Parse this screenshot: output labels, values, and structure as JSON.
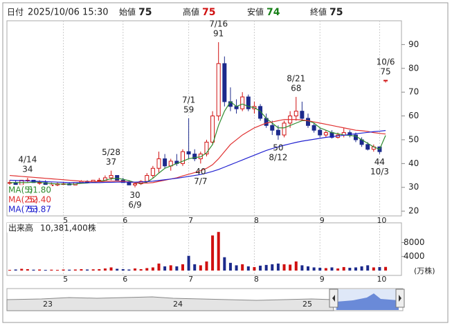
{
  "header": {
    "date_label": "日付",
    "datetime": "2025/10/06 15:30",
    "open_label": "始値",
    "open": 75,
    "high_label": "高値",
    "high": 75,
    "low_label": "安値",
    "low": 74,
    "close_label": "終値",
    "close": 75
  },
  "chart_data": {
    "type": "candlestick",
    "categories": [
      null,
      null,
      null,
      null,
      null,
      null,
      null,
      null,
      null,
      "5",
      null,
      null,
      null,
      null,
      null,
      null,
      null,
      null,
      null,
      "6",
      null,
      null,
      null,
      null,
      null,
      null,
      null,
      null,
      null,
      null,
      "7",
      null,
      null,
      null,
      null,
      null,
      null,
      null,
      null,
      null,
      null,
      "8",
      null,
      null,
      null,
      null,
      null,
      null,
      null,
      null,
      null,
      null,
      "9",
      null,
      null,
      null,
      null,
      null,
      null,
      null,
      null,
      null,
      "10",
      null
    ],
    "ohlc": [
      [
        32,
        33,
        31,
        32
      ],
      [
        32,
        33,
        31,
        31
      ],
      [
        31,
        33,
        31,
        33
      ],
      [
        33,
        34,
        32,
        33
      ],
      [
        33,
        33,
        32,
        32
      ],
      [
        32,
        33,
        31,
        32
      ],
      [
        32,
        33,
        31,
        31
      ],
      [
        31,
        32,
        31,
        31
      ],
      [
        31,
        32,
        30.5,
        31.5
      ],
      [
        31.5,
        32,
        31,
        31.5
      ],
      [
        31.5,
        32,
        31,
        31
      ],
      [
        31,
        32,
        31,
        32
      ],
      [
        32,
        33,
        31.5,
        32.5
      ],
      [
        32.5,
        33,
        32,
        32
      ],
      [
        32,
        33,
        32,
        33
      ],
      [
        33,
        34,
        32.5,
        33
      ],
      [
        33,
        35,
        33,
        34
      ],
      [
        34,
        37,
        33,
        35
      ],
      [
        35,
        35,
        33,
        33
      ],
      [
        33,
        34,
        32,
        32
      ],
      [
        32,
        33,
        31,
        31
      ],
      [
        31,
        32,
        30,
        31.5
      ],
      [
        31.5,
        33,
        31,
        32.5
      ],
      [
        32.5,
        36,
        32,
        35
      ],
      [
        35,
        39,
        34,
        38
      ],
      [
        38,
        45,
        36,
        42
      ],
      [
        42,
        44,
        38,
        39
      ],
      [
        39,
        42,
        37,
        41
      ],
      [
        41,
        44,
        39,
        40
      ],
      [
        40,
        46,
        39,
        45
      ],
      [
        45,
        59,
        42,
        44
      ],
      [
        44,
        46,
        41,
        42
      ],
      [
        42,
        45,
        40,
        44
      ],
      [
        44,
        50,
        43,
        49
      ],
      [
        49,
        62,
        48,
        60
      ],
      [
        60,
        91,
        58,
        82
      ],
      [
        82,
        85,
        64,
        66
      ],
      [
        66,
        72,
        62,
        64
      ],
      [
        64,
        67,
        61,
        63
      ],
      [
        63,
        70,
        62,
        68
      ],
      [
        68,
        69,
        62,
        63
      ],
      [
        63,
        66,
        61,
        64
      ],
      [
        64,
        65,
        58,
        59
      ],
      [
        59,
        61,
        55,
        56
      ],
      [
        56,
        58,
        52,
        54
      ],
      [
        54,
        56,
        50,
        52
      ],
      [
        52,
        58,
        51,
        57
      ],
      [
        57,
        62,
        55,
        60
      ],
      [
        60,
        68,
        58,
        62
      ],
      [
        62,
        66,
        58,
        59
      ],
      [
        59,
        61,
        55,
        56
      ],
      [
        56,
        57,
        53,
        54
      ],
      [
        54,
        55,
        51,
        52
      ],
      [
        52,
        54,
        51,
        53
      ],
      [
        53,
        54,
        50.5,
        51
      ],
      [
        51,
        53,
        50.5,
        52
      ],
      [
        52,
        55,
        51,
        53
      ],
      [
        53,
        54,
        51,
        52
      ],
      [
        52,
        53,
        49,
        50
      ],
      [
        50,
        51,
        47,
        48
      ],
      [
        48,
        49,
        45.5,
        46
      ],
      [
        46,
        48,
        45,
        47
      ],
      [
        47,
        47,
        44,
        45
      ],
      [
        75,
        75,
        74,
        75
      ]
    ],
    "up_color": "#ffffff",
    "up_stroke": "#d01010",
    "down_color": "#1c2a8c",
    "ylim": [
      18,
      100
    ],
    "yticks": [
      20,
      30,
      40,
      50,
      60,
      70,
      80,
      90
    ],
    "grid": true,
    "legend_position": "bottom-left",
    "series": [
      {
        "name": "MA(5)",
        "color": "#2e8b2e",
        "legend_value": "51.80",
        "values": [
          32,
          32,
          32,
          32,
          32.2,
          32.2,
          31.8,
          31.6,
          31.4,
          31.4,
          31.3,
          31.4,
          31.7,
          31.8,
          32.1,
          32.5,
          33,
          33.6,
          33.8,
          33.4,
          32.8,
          32,
          31.6,
          32.2,
          33.8,
          36,
          38,
          39,
          40,
          41,
          42,
          42.5,
          42.8,
          44.5,
          48,
          56,
          62,
          66,
          64,
          65,
          64,
          63.5,
          62,
          59,
          57,
          55,
          55,
          56,
          57,
          58,
          58,
          57,
          55,
          54,
          53,
          52.5,
          52,
          51.8,
          51.5,
          50,
          48.5,
          47,
          46,
          51.8
        ]
      },
      {
        "name": "MA(25)",
        "color": "#e03030",
        "legend_value": "52.40",
        "values": [
          35,
          34.8,
          34.6,
          34.4,
          34.2,
          34,
          33.8,
          33.6,
          33.4,
          33.2,
          33,
          32.8,
          32.6,
          32.5,
          32.4,
          32.4,
          32.5,
          32.6,
          32.6,
          32.5,
          32.3,
          32,
          31.8,
          31.8,
          32,
          32.5,
          33,
          33.5,
          34,
          34.8,
          35.5,
          36.2,
          37,
          38,
          39.5,
          42,
          45,
          48,
          50,
          52,
          53.5,
          55,
          56,
          57,
          57.5,
          58,
          58.5,
          58.5,
          58.5,
          58.3,
          58,
          57.5,
          57,
          56.5,
          56,
          55.5,
          55,
          54.5,
          54,
          53.8,
          53.5,
          53,
          52.7,
          52.4
        ]
      },
      {
        "name": "MA(75)",
        "color": "#2020d0",
        "legend_value": "53.87",
        "values": [
          33,
          32.9,
          32.8,
          32.7,
          32.6,
          32.5,
          32.4,
          32.3,
          32.2,
          32.1,
          32,
          32,
          32,
          32,
          32,
          32,
          32.1,
          32.1,
          32.2,
          32.2,
          32.2,
          32.2,
          32.3,
          32.4,
          32.6,
          32.9,
          33.2,
          33.5,
          33.8,
          34.2,
          34.6,
          35,
          35.4,
          36,
          36.7,
          37.5,
          38.5,
          39.5,
          40.5,
          41.5,
          42.5,
          43.5,
          44.5,
          45.5,
          46.3,
          47,
          47.7,
          48.3,
          48.9,
          49.4,
          49.8,
          50.2,
          50.6,
          51,
          51.3,
          51.6,
          51.9,
          52.2,
          52.5,
          52.8,
          53.1,
          53.4,
          53.6,
          53.87
        ]
      }
    ],
    "annotations": [
      {
        "date": "4/14",
        "value": 34,
        "at": "high"
      },
      {
        "date": "5/28",
        "value": 37,
        "at": "high"
      },
      {
        "date": "6/9",
        "value": 30,
        "at": "low"
      },
      {
        "date": "7/1",
        "value": 59,
        "at": "high"
      },
      {
        "date": "7/7",
        "value": 40,
        "at": "low"
      },
      {
        "date": "7/16",
        "value": 91,
        "at": "high"
      },
      {
        "date": "8/12",
        "value": 50,
        "at": "low"
      },
      {
        "date": "8/21",
        "value": 68,
        "at": "high"
      },
      {
        "date": "10/3",
        "value": 44,
        "at": "low"
      },
      {
        "date": "10/6",
        "value": 75,
        "at": "high"
      }
    ],
    "volume": {
      "label": "出来高",
      "total": "10,381,400株",
      "unit": "(万株)",
      "ylim": [
        0,
        13600
      ],
      "yticks": [
        4000,
        8000
      ],
      "values": [
        200,
        300,
        500,
        400,
        250,
        300,
        200,
        250,
        200,
        300,
        250,
        300,
        400,
        300,
        350,
        400,
        600,
        900,
        500,
        400,
        300,
        600,
        400,
        700,
        900,
        2000,
        1200,
        1500,
        1200,
        1800,
        4200,
        1800,
        1500,
        2600,
        10000,
        11000,
        3800,
        2200,
        1500,
        1800,
        1200,
        1000,
        1400,
        1600,
        1800,
        2000,
        1800,
        1700,
        2600,
        1500,
        1200,
        900,
        800,
        700,
        900,
        600,
        1000,
        800,
        900,
        1200,
        1500,
        900,
        1000,
        1038.14
      ]
    }
  },
  "navigator": {
    "labels": [
      "23",
      "24",
      "25"
    ]
  }
}
